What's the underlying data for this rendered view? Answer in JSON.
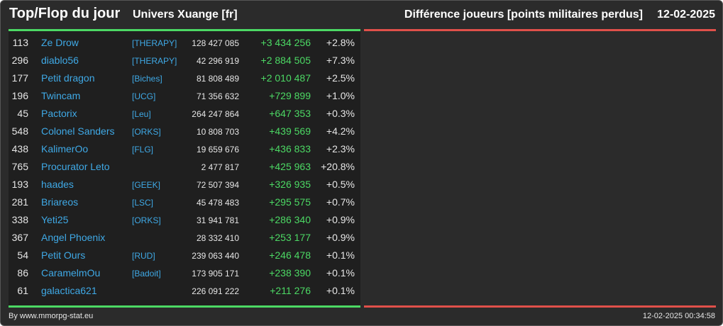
{
  "header": {
    "title": "Top/Flop du jour",
    "universe": "Univers Xuange [fr]",
    "metric": "Différence joueurs [points militaires perdus]",
    "date": "12-02-2025"
  },
  "colors": {
    "background": "#2b2b2b",
    "panel": "#1f1f1f",
    "top_accent": "#4cd964",
    "flop_accent": "#e0504a",
    "link": "#3fa9e6"
  },
  "top_players": [
    {
      "rank": "113",
      "name": "Ze Drow",
      "alliance": "[THERAPY]",
      "points": "128 427 085",
      "diff": "+3 434 256",
      "pct": "+2.8%"
    },
    {
      "rank": "296",
      "name": "diablo56",
      "alliance": "[THERAPY]",
      "points": "42 296 919",
      "diff": "+2 884 505",
      "pct": "+7.3%"
    },
    {
      "rank": "177",
      "name": "Petit dragon",
      "alliance": "[Biches]",
      "points": "81 808 489",
      "diff": "+2 010 487",
      "pct": "+2.5%"
    },
    {
      "rank": "196",
      "name": "Twincam",
      "alliance": "[UCG]",
      "points": "71 356 632",
      "diff": "+729 899",
      "pct": "+1.0%"
    },
    {
      "rank": "45",
      "name": "Pactorix",
      "alliance": "[Leu]",
      "points": "264 247 864",
      "diff": "+647 353",
      "pct": "+0.3%"
    },
    {
      "rank": "548",
      "name": "Colonel Sanders",
      "alliance": "[ORKS]",
      "points": "10 808 703",
      "diff": "+439 569",
      "pct": "+4.2%"
    },
    {
      "rank": "438",
      "name": "KalimerOo",
      "alliance": "[FLG]",
      "points": "19 659 676",
      "diff": "+436 833",
      "pct": "+2.3%"
    },
    {
      "rank": "765",
      "name": "Procurator Leto",
      "alliance": "",
      "points": "2 477 817",
      "diff": "+425 963",
      "pct": "+20.8%"
    },
    {
      "rank": "193",
      "name": "haades",
      "alliance": "[GEEK]",
      "points": "72 507 394",
      "diff": "+326 935",
      "pct": "+0.5%"
    },
    {
      "rank": "281",
      "name": "Briareos",
      "alliance": "[LSC]",
      "points": "45 478 483",
      "diff": "+295 575",
      "pct": "+0.7%"
    },
    {
      "rank": "338",
      "name": "Yeti25",
      "alliance": "[ORKS]",
      "points": "31 941 781",
      "diff": "+286 340",
      "pct": "+0.9%"
    },
    {
      "rank": "367",
      "name": "Angel Phoenix",
      "alliance": "",
      "points": "28 332 410",
      "diff": "+253 177",
      "pct": "+0.9%"
    },
    {
      "rank": "54",
      "name": "Petit Ours",
      "alliance": "[RUD]",
      "points": "239 063 440",
      "diff": "+246 478",
      "pct": "+0.1%"
    },
    {
      "rank": "86",
      "name": "CaramelmOu",
      "alliance": "[Badoit]",
      "points": "173 905 171",
      "diff": "+238 390",
      "pct": "+0.1%"
    },
    {
      "rank": "61",
      "name": "galactica621",
      "alliance": "",
      "points": "226 091 222",
      "diff": "+211 276",
      "pct": "+0.1%"
    }
  ],
  "flop_players": [],
  "footer": {
    "credit": "By www.mmorpg-stat.eu",
    "timestamp": "12-02-2025 00:34:58"
  }
}
